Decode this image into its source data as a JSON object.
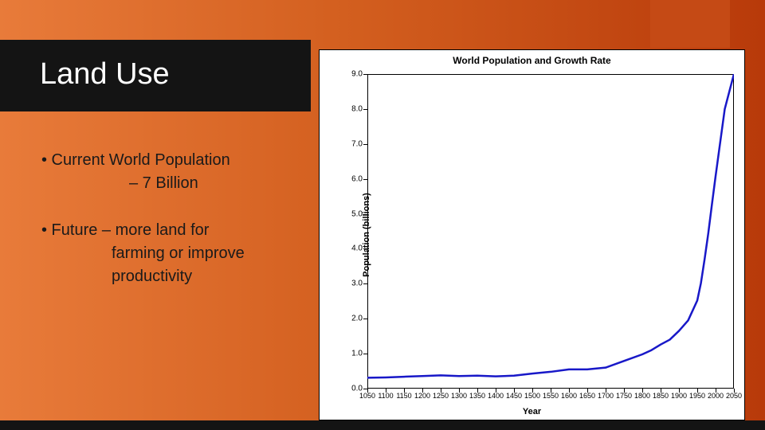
{
  "slide": {
    "title": "Land Use",
    "bullets": [
      {
        "line1": "• Current World Population",
        "line2": "– 7 Billion"
      },
      {
        "line1": "• Future – more land for",
        "line2": "farming or improve",
        "line3": "productivity"
      }
    ],
    "background_gradient": [
      "#e87b3a",
      "#d35f1f",
      "#b83a0a"
    ],
    "title_bar_color": "#141414",
    "accent_block_color": "#c54a15"
  },
  "chart": {
    "type": "line",
    "title": "World Population and Growth Rate",
    "xlabel": "Year",
    "ylabel": "Population (billions)",
    "title_fontsize": 12,
    "label_fontsize": 11,
    "tick_fontsize": 10,
    "xlim": [
      1050,
      2050
    ],
    "ylim": [
      0.0,
      9.0
    ],
    "xticks": [
      1050,
      1100,
      1150,
      1200,
      1250,
      1300,
      1350,
      1400,
      1450,
      1500,
      1550,
      1600,
      1650,
      1700,
      1750,
      1800,
      1850,
      1900,
      1950,
      2000,
      2050
    ],
    "yticks": [
      0.0,
      1.0,
      2.0,
      3.0,
      4.0,
      5.0,
      6.0,
      7.0,
      8.0,
      9.0
    ],
    "background_color": "#ffffff",
    "border_color": "#000000",
    "line_color": "#1818c8",
    "line_width": 2.5,
    "data": {
      "x": [
        1050,
        1100,
        1150,
        1200,
        1250,
        1300,
        1350,
        1400,
        1450,
        1500,
        1550,
        1600,
        1650,
        1700,
        1750,
        1800,
        1825,
        1850,
        1875,
        1900,
        1925,
        1950,
        1960,
        1970,
        1980,
        1990,
        2000,
        2010,
        2025,
        2050
      ],
      "y": [
        0.31,
        0.32,
        0.34,
        0.36,
        0.38,
        0.36,
        0.37,
        0.35,
        0.37,
        0.43,
        0.48,
        0.55,
        0.55,
        0.6,
        0.79,
        0.98,
        1.1,
        1.26,
        1.4,
        1.65,
        1.95,
        2.52,
        3.02,
        3.7,
        4.44,
        5.27,
        6.08,
        6.85,
        8.0,
        9.0
      ]
    }
  }
}
